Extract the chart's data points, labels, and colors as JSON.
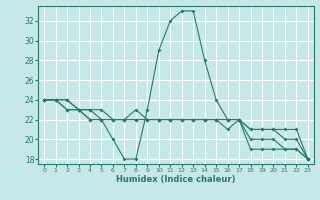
{
  "xlabel": "Humidex (Indice chaleur)",
  "ylabel": "",
  "background_color": "#c6e8e8",
  "grid_color": "#ffffff",
  "line_color": "#2a7a6a",
  "xlim": [
    -0.5,
    23.5
  ],
  "ylim": [
    17.5,
    33.5
  ],
  "yticks": [
    18,
    20,
    22,
    24,
    26,
    28,
    30,
    32
  ],
  "xticks": [
    0,
    1,
    2,
    3,
    4,
    5,
    6,
    7,
    8,
    9,
    10,
    11,
    12,
    13,
    14,
    15,
    16,
    17,
    18,
    19,
    20,
    21,
    22,
    23
  ],
  "series": [
    {
      "x": [
        0,
        1,
        2,
        3,
        4,
        5,
        6,
        7,
        8,
        9,
        10,
        11,
        12,
        13,
        14,
        15,
        16,
        17,
        18,
        19,
        20,
        21,
        22,
        23
      ],
      "y": [
        24,
        24,
        24,
        23,
        23,
        22,
        20,
        18,
        18,
        23,
        29,
        32,
        33,
        33,
        28,
        24,
        22,
        22,
        19,
        19,
        19,
        19,
        19,
        18
      ]
    },
    {
      "x": [
        0,
        1,
        2,
        3,
        4,
        5,
        6,
        7,
        8,
        9,
        10,
        11,
        12,
        13,
        14,
        15,
        16,
        17,
        18,
        19,
        20,
        21,
        22,
        23
      ],
      "y": [
        24,
        24,
        23,
        23,
        22,
        22,
        22,
        22,
        23,
        22,
        22,
        22,
        22,
        22,
        22,
        22,
        22,
        22,
        20,
        20,
        20,
        19,
        19,
        18
      ]
    },
    {
      "x": [
        0,
        1,
        2,
        3,
        4,
        5,
        6,
        7,
        8,
        9,
        10,
        11,
        12,
        13,
        14,
        15,
        16,
        17,
        18,
        19,
        20,
        21,
        22,
        23
      ],
      "y": [
        24,
        24,
        23,
        23,
        22,
        22,
        22,
        22,
        22,
        22,
        22,
        22,
        22,
        22,
        22,
        22,
        21,
        22,
        21,
        21,
        21,
        20,
        20,
        18
      ]
    },
    {
      "x": [
        0,
        1,
        2,
        3,
        4,
        5,
        6,
        7,
        8,
        9,
        10,
        11,
        12,
        13,
        14,
        15,
        16,
        17,
        18,
        19,
        20,
        21,
        22,
        23
      ],
      "y": [
        24,
        24,
        24,
        23,
        23,
        23,
        22,
        22,
        22,
        22,
        22,
        22,
        22,
        22,
        22,
        22,
        22,
        22,
        21,
        21,
        21,
        21,
        21,
        18
      ]
    }
  ]
}
